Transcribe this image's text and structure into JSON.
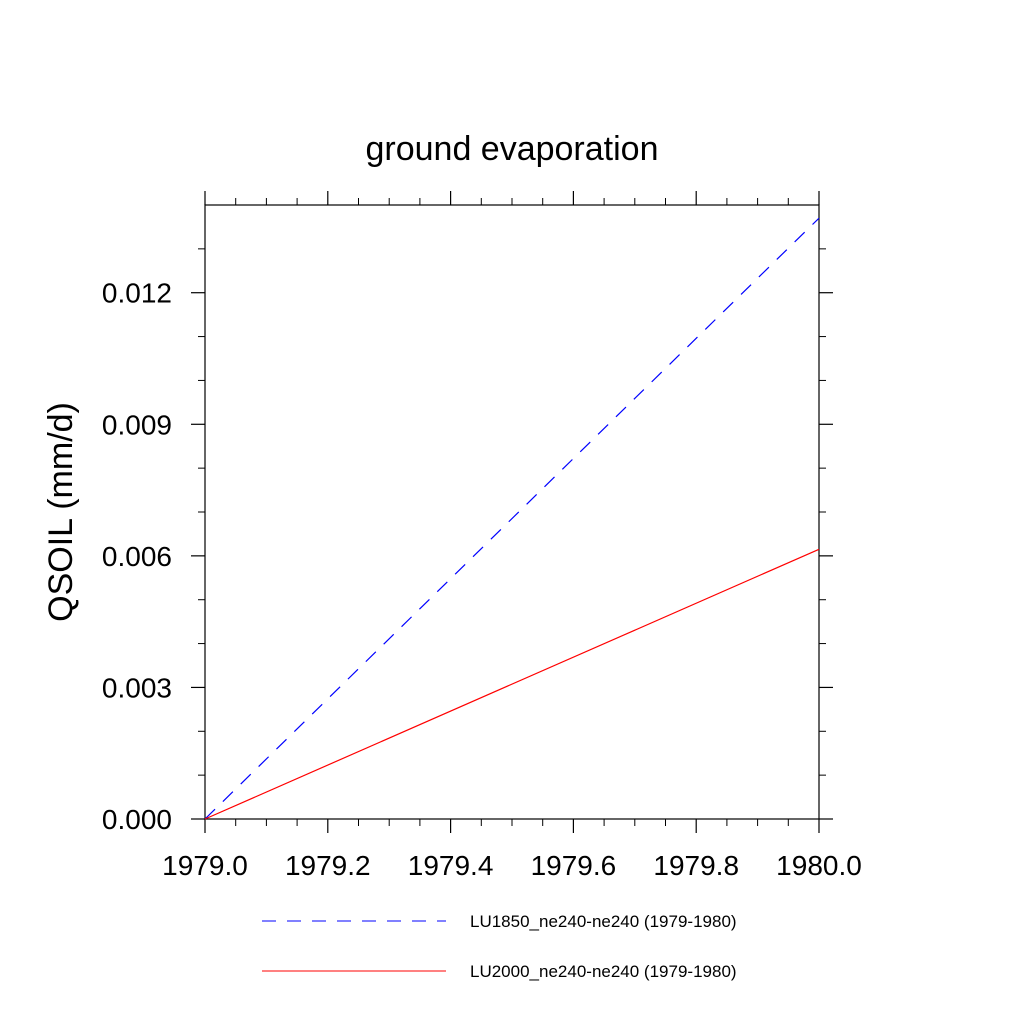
{
  "chart_data": {
    "type": "line",
    "title": "ground evaporation",
    "xlabel": "",
    "ylabel": "QSOIL  (mm/d)",
    "xlim": [
      1979.0,
      1980.0
    ],
    "ylim": [
      0.0,
      0.014
    ],
    "x_ticks": [
      "1979.0",
      "1979.2",
      "1979.4",
      "1979.6",
      "1979.8",
      "1980.0"
    ],
    "y_ticks": [
      "0.000",
      "0.003",
      "0.006",
      "0.009",
      "0.012"
    ],
    "grid": false,
    "legend_position": "bottom",
    "series": [
      {
        "name": "LU1850_ne240-ne240 (1979-1980)",
        "color": "#0000ff",
        "line_style": "dashed",
        "x": [
          1979.0,
          1980.0
        ],
        "y": [
          0.0,
          0.0137
        ]
      },
      {
        "name": "LU2000_ne240-ne240 (1979-1980)",
        "color": "#ff0000",
        "line_style": "solid",
        "x": [
          1979.0,
          1980.0
        ],
        "y": [
          0.0,
          0.00615
        ]
      }
    ]
  }
}
